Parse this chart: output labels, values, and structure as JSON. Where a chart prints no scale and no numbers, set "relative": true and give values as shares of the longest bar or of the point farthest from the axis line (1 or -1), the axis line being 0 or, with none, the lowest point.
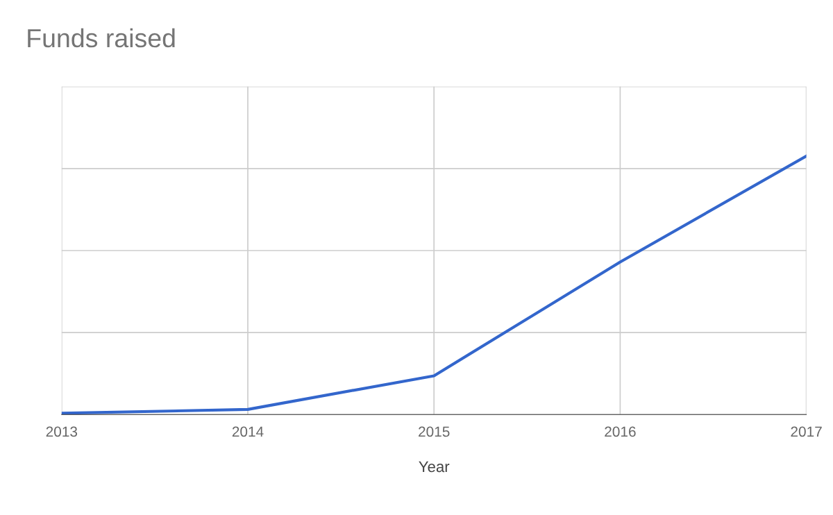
{
  "chart_data": {
    "type": "line",
    "title": "Funds raised",
    "xlabel": "Year",
    "relative": true,
    "x": [
      2013,
      2014,
      2015,
      2016,
      2017
    ],
    "series": [
      {
        "color": "#3366cc",
        "values": [
          0.005,
          0.02,
          0.15,
          0.59,
          1
        ]
      }
    ],
    "xlim": [
      2013,
      2017
    ],
    "xticks": [
      2013,
      2014,
      2015,
      2016,
      2017
    ],
    "grid": true,
    "legend": false,
    "marker": "none",
    "line_style": "solid"
  }
}
